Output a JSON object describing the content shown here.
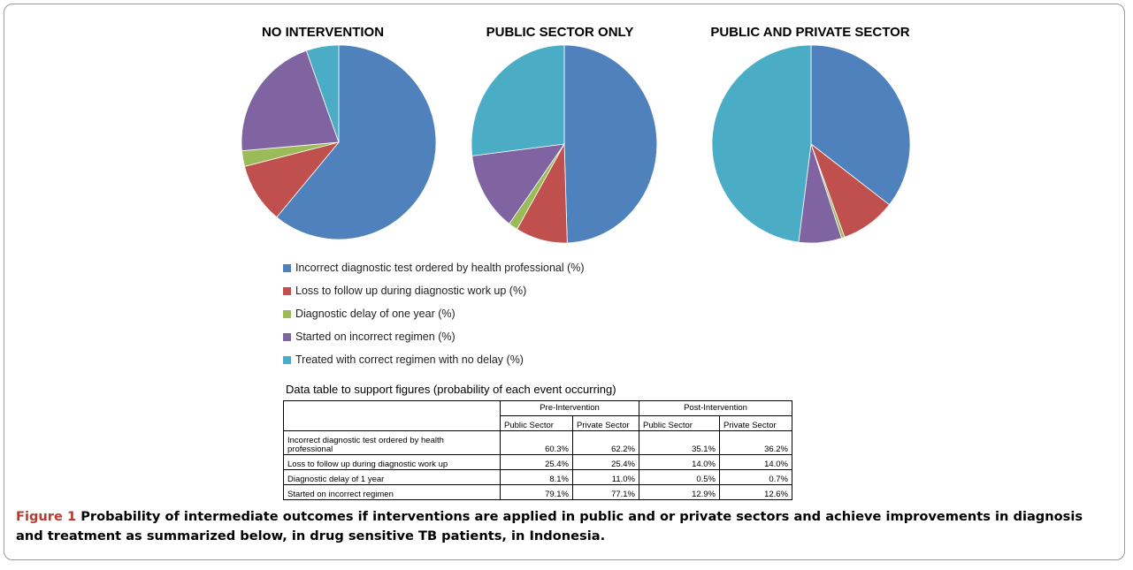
{
  "colors": {
    "incorrect_test": "#4f81bd",
    "loss_followup": "#c0504d",
    "diagnostic_delay": "#9bbb59",
    "incorrect_regimen": "#8064a2",
    "correct_regimen": "#4bacc6"
  },
  "chart_data": [
    {
      "type": "pie",
      "title": "NO INTERVENTION",
      "categories": [
        "Incorrect diagnostic test ordered by health professional (%)",
        "Loss to follow up during diagnostic work up (%)",
        "Diagnostic delay of one year (%)",
        "Started on incorrect regimen (%)",
        "Treated with correct regimen with no delay (%)"
      ],
      "values": [
        61,
        10,
        2.6,
        21,
        5.4
      ]
    },
    {
      "type": "pie",
      "title": "PUBLIC SECTOR ONLY",
      "categories": [
        "Incorrect diagnostic test ordered by health professional (%)",
        "Loss to follow up during diagnostic work up (%)",
        "Diagnostic delay of one year (%)",
        "Started on incorrect regimen (%)",
        "Treated with correct regimen with no delay (%)"
      ],
      "values": [
        49.5,
        9,
        1.6,
        13,
        26.9
      ]
    },
    {
      "type": "pie",
      "title": "PUBLIC AND PRIVATE SECTOR",
      "categories": [
        "Incorrect diagnostic test ordered by health professional (%)",
        "Loss to follow up during diagnostic work up (%)",
        "Diagnostic delay of one year (%)",
        "Started on incorrect regimen (%)",
        "Treated with correct regimen with no delay (%)"
      ],
      "values": [
        35.5,
        9,
        0.5,
        7,
        48
      ]
    },
    {
      "type": "table",
      "title": "Data table to support figures (probability of each event occurring)",
      "group_headers": [
        "Pre-Intervention",
        "Post-Intervention"
      ],
      "sub_headers": [
        "Public Sector",
        "Private Sector",
        "Public Sector",
        "Private Sector"
      ],
      "rows": [
        {
          "label_line1": "Incorrect diagnostic test ordered by health",
          "label_line2": "professional",
          "values": [
            "60.3%",
            "62.2%",
            "35.1%",
            "36.2%"
          ]
        },
        {
          "label_line1": "Loss to follow up during diagnostic work up",
          "label_line2": "",
          "values": [
            "25.4%",
            "25.4%",
            "14.0%",
            "14.0%"
          ]
        },
        {
          "label_line1": "Diagnostic delay of 1 year",
          "label_line2": "",
          "values": [
            "8.1%",
            "11.0%",
            "0.5%",
            "0.7%"
          ]
        },
        {
          "label_line1": "Started on incorrect regimen",
          "label_line2": "",
          "values": [
            "79.1%",
            "77.1%",
            "12.9%",
            "12.6%"
          ]
        }
      ]
    }
  ],
  "legend": [
    {
      "label": "Incorrect diagnostic test ordered by health professional (%)",
      "color_key": "incorrect_test"
    },
    {
      "label": "Loss to follow up during diagnostic work up (%)",
      "color_key": "loss_followup"
    },
    {
      "label": "Diagnostic delay of one year (%)",
      "color_key": "diagnostic_delay"
    },
    {
      "label": "Started on incorrect regimen (%)",
      "color_key": "incorrect_regimen"
    },
    {
      "label": "Treated with correct regimen with no delay (%)",
      "color_key": "correct_regimen"
    }
  ],
  "caption": {
    "label": "Figure 1",
    "text": " Probability of intermediate outcomes if interventions are applied in public and or private sectors and achieve improvements in diagnosis and treatment as summarized below, in drug sensitive TB patients, in Indonesia."
  }
}
